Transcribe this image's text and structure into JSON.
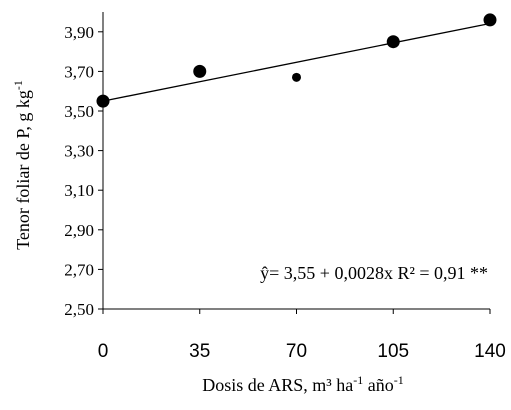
{
  "chart_data": {
    "type": "scatter",
    "x": [
      0,
      35,
      70,
      105,
      140
    ],
    "y": [
      3.55,
      3.7,
      3.67,
      3.85,
      3.96
    ],
    "marker_sizes": [
      "large",
      "large",
      "small",
      "large",
      "large"
    ],
    "trendline": {
      "type": "linear",
      "intercept": 3.55,
      "slope": 0.0028,
      "x_range": [
        0,
        140
      ]
    },
    "xticks": [
      0,
      35,
      70,
      105,
      140
    ],
    "xtick_labels": [
      "0",
      "35",
      "70",
      "105",
      "140"
    ],
    "yticks": [
      2.5,
      2.7,
      2.9,
      3.1,
      3.3,
      3.5,
      3.7,
      3.9
    ],
    "ytick_labels": [
      "2,50",
      "2,70",
      "2,90",
      "3,10",
      "3,30",
      "3,50",
      "3,70",
      "3,90"
    ],
    "xlim": [
      0,
      140
    ],
    "ylim": [
      2.5,
      4.0
    ],
    "grid": false,
    "legend": "none",
    "xlabel": {
      "main": "Dosis de ARS, m³ ha",
      "exp1": "-1",
      "mid": " año",
      "exp2": "-1"
    },
    "ylabel": {
      "main": "Tenor foliar de P, g kg",
      "exp": "-1"
    },
    "annotation": "ŷ= 3,55 + 0,0028x R² = 0,91 **",
    "colors": {
      "points": "#000000",
      "line": "#000000",
      "axes": "#000000"
    }
  }
}
